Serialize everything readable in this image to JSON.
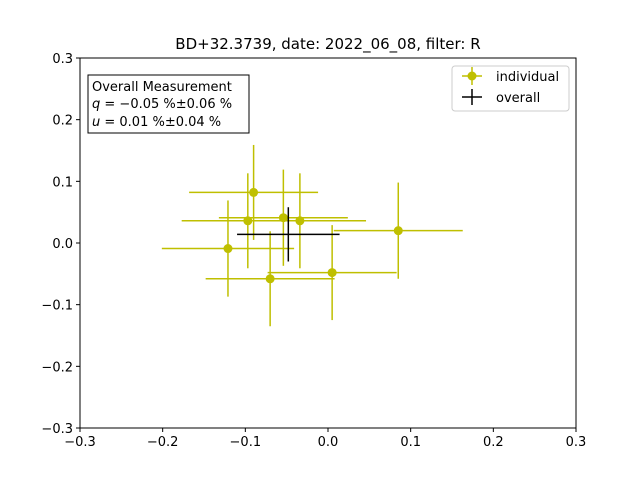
{
  "chart_data": {
    "type": "scatter",
    "title": "BD+32.3739, date: 2022_06_08, filter: R",
    "xlabel": "",
    "ylabel": "",
    "xlim": [
      -0.3,
      0.3
    ],
    "ylim": [
      -0.3,
      0.3
    ],
    "xticks": [
      -0.3,
      -0.2,
      -0.1,
      0.0,
      0.1,
      0.2,
      0.3
    ],
    "yticks": [
      -0.3,
      -0.2,
      -0.1,
      0.0,
      0.1,
      0.2,
      0.3
    ],
    "xtick_labels": [
      "−0.3",
      "−0.2",
      "−0.1",
      "0.0",
      "0.1",
      "0.2",
      "0.3"
    ],
    "ytick_labels": [
      "−0.3",
      "−0.2",
      "−0.1",
      "0.0",
      "0.1",
      "0.2",
      "0.3"
    ],
    "grid": false,
    "legend_position": "top-right",
    "series": [
      {
        "name": "individual",
        "color": "#bfbf00",
        "points": [
          {
            "x": -0.09,
            "y": 0.082,
            "xerr": 0.078,
            "yerr": 0.077
          },
          {
            "x": -0.097,
            "y": 0.036,
            "xerr": 0.08,
            "yerr": 0.077
          },
          {
            "x": -0.054,
            "y": 0.041,
            "xerr": 0.078,
            "yerr": 0.078
          },
          {
            "x": -0.034,
            "y": 0.036,
            "xerr": 0.08,
            "yerr": 0.077
          },
          {
            "x": -0.121,
            "y": -0.009,
            "xerr": 0.08,
            "yerr": 0.078
          },
          {
            "x": 0.085,
            "y": 0.02,
            "xerr": 0.078,
            "yerr": 0.078
          },
          {
            "x": 0.005,
            "y": -0.048,
            "xerr": 0.078,
            "yerr": 0.077
          },
          {
            "x": -0.07,
            "y": -0.058,
            "xerr": 0.078,
            "yerr": 0.077
          }
        ]
      },
      {
        "name": "overall",
        "color": "#000000",
        "points": [
          {
            "x": -0.048,
            "y": 0.014,
            "xerr": 0.062,
            "yerr": 0.044
          }
        ]
      }
    ],
    "annotation": {
      "heading": "Overall Measurement",
      "line_q_sym": "q",
      "line_q": " = −0.05 %±0.06 %",
      "line_u_sym": "u",
      "line_u": " = 0.01 %±0.04 %"
    }
  }
}
